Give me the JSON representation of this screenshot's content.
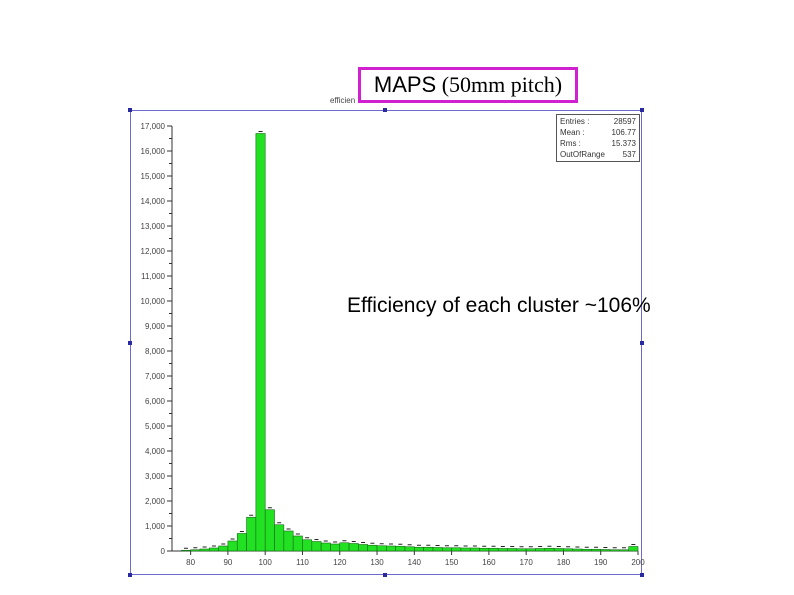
{
  "title": {
    "main": "MAPS",
    "sub": "(50mm pitch)"
  },
  "histogram_name": "efficien",
  "stats": {
    "rows": [
      {
        "label": "Entries :",
        "value": "28597"
      },
      {
        "label": "Mean :",
        "value": "106.77"
      },
      {
        "label": "Rms :",
        "value": "15.373"
      },
      {
        "label": "OutOfRange",
        "value": "537"
      }
    ]
  },
  "annotation": "Efficiency of each cluster ~106%",
  "chart_data": {
    "type": "bar",
    "title": "MAPS (50mm pitch)",
    "xlabel": "",
    "ylabel": "",
    "xlim": [
      75,
      200
    ],
    "ylim": [
      0,
      17000
    ],
    "bin_width": 2.5,
    "x_ticks": [
      80,
      90,
      100,
      110,
      120,
      130,
      140,
      150,
      160,
      170,
      180,
      190,
      200
    ],
    "y_ticks": [
      0,
      1000,
      2000,
      3000,
      4000,
      5000,
      6000,
      7000,
      8000,
      9000,
      10000,
      11000,
      12000,
      13000,
      14000,
      15000,
      16000,
      17000
    ],
    "y_tick_labels": [
      "0",
      "1,000",
      "2,000",
      "3,000",
      "4,000",
      "5,000",
      "6,000",
      "7,000",
      "8,000",
      "9,000",
      "10,000",
      "11,000",
      "12,000",
      "13,000",
      "14,000",
      "15,000",
      "16,000",
      "17,000"
    ],
    "bin_starts": [
      77.5,
      80,
      82.5,
      85,
      87.5,
      90,
      92.5,
      95,
      97.5,
      100,
      102.5,
      105,
      107.5,
      110,
      112.5,
      115,
      117.5,
      120,
      122.5,
      125,
      127.5,
      130,
      132.5,
      135,
      137.5,
      140,
      142.5,
      145,
      147.5,
      150,
      152.5,
      155,
      157.5,
      160,
      162.5,
      165,
      167.5,
      170,
      172.5,
      175,
      177.5,
      180,
      182.5,
      185,
      187.5,
      190,
      192.5,
      195,
      197.5
    ],
    "values": [
      30,
      50,
      80,
      120,
      200,
      400,
      700,
      1350,
      16700,
      1650,
      1050,
      800,
      600,
      450,
      380,
      320,
      280,
      330,
      300,
      260,
      230,
      210,
      200,
      190,
      170,
      150,
      150,
      140,
      130,
      130,
      120,
      120,
      110,
      110,
      100,
      100,
      90,
      90,
      100,
      110,
      100,
      90,
      80,
      70,
      70,
      60,
      50,
      50,
      180
    ],
    "colors": {
      "bar_fill": "#22e022",
      "bar_stroke": "#1a6a1a",
      "frame": "#6b6bcf",
      "title_border": "#d020d0"
    }
  }
}
